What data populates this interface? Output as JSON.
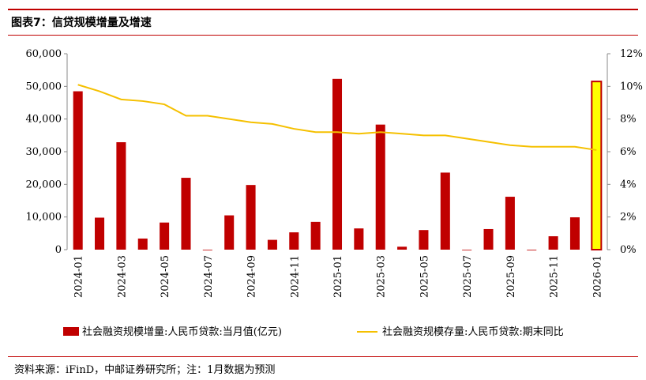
{
  "header": {
    "title": "图表7：信贷规模增量及增速"
  },
  "footer": {
    "source": "资料来源：iFinD，中邮证券研究所；注：1月数据为预测"
  },
  "chart_data": {
    "type": "bar+line",
    "x": [
      "2024-01",
      "2024-02",
      "2024-03",
      "2024-04",
      "2024-05",
      "2024-06",
      "2024-07",
      "2024-08",
      "2024-09",
      "2024-10",
      "2024-11",
      "2024-12",
      "2025-01",
      "2025-02",
      "2025-03",
      "2025-04",
      "2025-05",
      "2025-06",
      "2025-07",
      "2025-08",
      "2025-09",
      "2025-10",
      "2025-11",
      "2025-12",
      "2026-01"
    ],
    "x_tick_labels": [
      "2024-01",
      "2024-03",
      "2024-05",
      "2024-07",
      "2024-09",
      "2024-11",
      "2025-01",
      "2025-03",
      "2025-05",
      "2025-07",
      "2025-09",
      "2025-11",
      "2026-01"
    ],
    "y_left_ticks": [
      "0",
      "10,000",
      "20,000",
      "30,000",
      "40,000",
      "50,000",
      "60,000"
    ],
    "y_left_range": [
      0,
      60000
    ],
    "y_right_ticks": [
      "0%",
      "2%",
      "4%",
      "6%",
      "8%",
      "10%",
      "12%"
    ],
    "y_right_range": [
      0,
      12
    ],
    "series": [
      {
        "name": "社会融资规模增量:人民币贷款:当月值(亿元)",
        "type": "bar",
        "axis": "left",
        "color": "#c00000",
        "highlight_color": "#ffff00",
        "highlight_index": 24,
        "values": [
          48500,
          9800,
          32900,
          3400,
          8300,
          22000,
          -100,
          10500,
          19800,
          3000,
          5300,
          8500,
          52300,
          6500,
          38300,
          900,
          6000,
          23600,
          -100,
          6300,
          16200,
          -200,
          4100,
          9900,
          51500
        ]
      },
      {
        "name": "社会融资规模存量:人民币贷款:期末同比",
        "type": "line",
        "axis": "right",
        "color": "#f5c000",
        "values": [
          10.1,
          9.7,
          9.2,
          9.1,
          8.9,
          8.2,
          8.2,
          8.0,
          7.8,
          7.7,
          7.4,
          7.2,
          7.2,
          7.1,
          7.2,
          7.1,
          7.0,
          7.0,
          6.8,
          6.6,
          6.4,
          6.3,
          6.3,
          6.3,
          6.1
        ]
      }
    ]
  }
}
